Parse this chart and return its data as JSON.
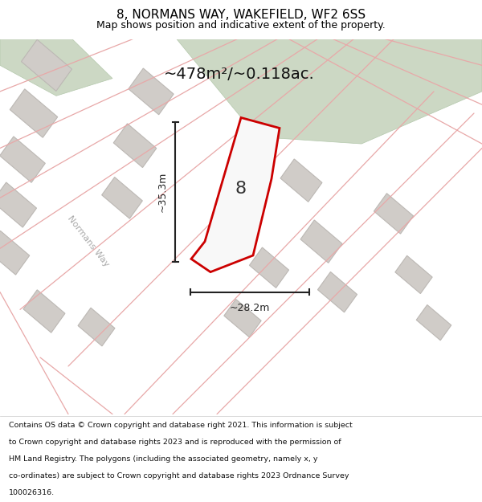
{
  "title": "8, NORMANS WAY, WAKEFIELD, WF2 6SS",
  "subtitle": "Map shows position and indicative extent of the property.",
  "area_text": "~478m²/~0.118ac.",
  "dim_width": "~28.2m",
  "dim_height": "~35.3m",
  "label": "8",
  "footer_lines": [
    "Contains OS data © Crown copyright and database right 2021. This information is subject",
    "to Crown copyright and database rights 2023 and is reproduced with the permission of",
    "HM Land Registry. The polygons (including the associated geometry, namely x, y",
    "co-ordinates) are subject to Crown copyright and database rights 2023 Ordnance Survey",
    "100026316."
  ],
  "map_bg": "#f0ede8",
  "road_line_color": "#e8a8a8",
  "building_fill": "#d0ccc8",
  "building_stroke": "#bcb8b4",
  "green_fill": "#ccd8c4",
  "green_stroke": "#b4c8ac",
  "property_fill": "#f8f8f8",
  "property_stroke": "#cc0000",
  "dim_color": "#222222",
  "road_label_color": "#aaaaaa",
  "street_name": "Normans Way",
  "title_fontsize": 11,
  "subtitle_fontsize": 9,
  "area_fontsize": 14,
  "label_fontsize": 16,
  "dim_fontsize": 9,
  "footer_fontsize": 6.8,
  "street_fontsize": 8
}
